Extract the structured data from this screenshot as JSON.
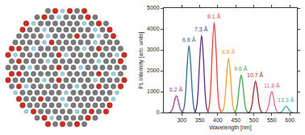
{
  "chart_data": {
    "type": "line",
    "x_label": "Wavelength [nm]",
    "y_label": "PL Intensity [arb. units]",
    "xlim": [
      250,
      620
    ],
    "xticks": [
      300,
      350,
      400,
      450,
      500,
      550,
      600
    ],
    "ylim": [
      0,
      5000
    ],
    "yticks": [
      0,
      1000,
      2000,
      3000,
      4000,
      5000
    ],
    "grid": false,
    "data_labels": true,
    "series": [
      {
        "name": "6.2 Å",
        "color": "#a0409a",
        "x": [
          265,
          270,
          275,
          280,
          285,
          290,
          295,
          300,
          305
        ],
        "values": [
          3,
          35,
          200,
          570,
          800,
          570,
          200,
          35,
          3
        ]
      },
      {
        "name": "6.8 Å",
        "color": "#2b6e8e",
        "x": [
          300,
          305,
          310,
          315,
          320,
          325,
          330,
          335,
          340
        ],
        "values": [
          13,
          141,
          800,
          2272,
          3200,
          2272,
          800,
          141,
          13
        ]
      },
      {
        "name": "7.3 Å",
        "color": "#5a2d82",
        "x": [
          335,
          340,
          345,
          350,
          355,
          360,
          365,
          370,
          375
        ],
        "values": [
          15,
          163,
          925,
          2627,
          3700,
          2627,
          925,
          163,
          15
        ]
      },
      {
        "name": "8.1 Å",
        "color": "#e8413c",
        "x": [
          370,
          375,
          380,
          385,
          390,
          395,
          400,
          405,
          410
        ],
        "values": [
          17,
          189,
          1075,
          3053,
          4300,
          3053,
          1075,
          189,
          17
        ]
      },
      {
        "name": "8.8 Å",
        "color": "#f2a22c",
        "x": [
          410,
          415,
          420,
          425,
          430,
          435,
          440,
          445,
          450
        ],
        "values": [
          10,
          114,
          650,
          1846,
          2600,
          1846,
          650,
          114,
          10
        ]
      },
      {
        "name": "9.6 Å",
        "color": "#3fa552",
        "x": [
          445,
          450,
          455,
          460,
          465,
          470,
          475,
          480,
          485
        ],
        "values": [
          7,
          79,
          450,
          1278,
          1800,
          1278,
          450,
          79,
          7
        ]
      },
      {
        "name": "10.7 Å",
        "color": "#9b2b2b",
        "x": [
          485,
          490,
          495,
          500,
          505,
          510,
          515,
          520,
          525
        ],
        "values": [
          6,
          66,
          375,
          1065,
          1500,
          1065,
          375,
          66,
          6
        ]
      },
      {
        "name": "11.8 Å",
        "color": "#e0609a",
        "x": [
          530,
          535,
          540,
          545,
          550,
          555,
          560,
          565,
          570
        ],
        "values": [
          4,
          44,
          250,
          710,
          1000,
          710,
          250,
          44,
          4
        ]
      },
      {
        "name": "13.3 Å",
        "color": "#3fb0a6",
        "x": [
          570,
          575,
          580,
          585,
          590,
          595,
          600,
          605,
          610
        ],
        "values": [
          1,
          13,
          75,
          213,
          300,
          213,
          75,
          13,
          1
        ]
      }
    ]
  }
}
